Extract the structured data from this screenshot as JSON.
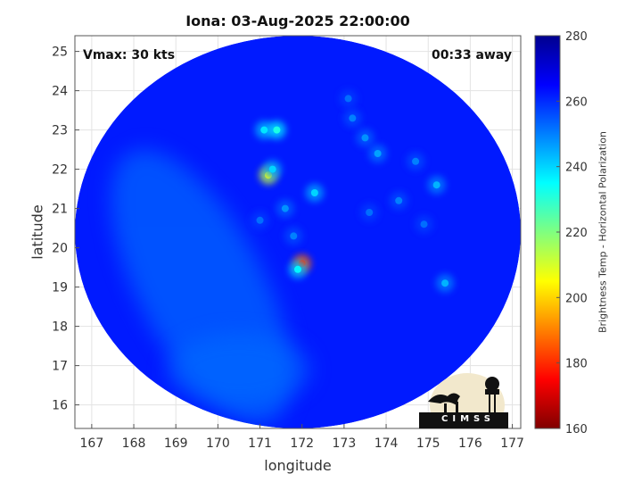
{
  "chart_data": {
    "type": "heatmap",
    "title": "Iona: 03-Aug-2025 22:00:00",
    "xlabel": "longitude",
    "ylabel": "latitude",
    "xlim": [
      166.6,
      177.2
    ],
    "ylim": [
      15.4,
      25.4
    ],
    "xticks": [
      167,
      168,
      169,
      170,
      171,
      172,
      173,
      174,
      175,
      176,
      177
    ],
    "yticks": [
      16,
      17,
      18,
      19,
      20,
      21,
      22,
      23,
      24,
      25
    ],
    "grid": true,
    "colorbar": {
      "label": "Brightness Temp - Horizontal Polarization",
      "range": [
        160,
        280
      ],
      "ticks": [
        160,
        180,
        200,
        220,
        240,
        260,
        280
      ],
      "colormap": "jet"
    },
    "annotations": {
      "vmax": "Vmax: 30 kts",
      "time_away": "00:33 away"
    },
    "swath": {
      "center_lon": 171.9,
      "center_lat": 20.4,
      "lon_radius": 5.3,
      "lat_radius": 5.0
    },
    "background_temp": 262,
    "features": [
      {
        "lon": 172.0,
        "lat": 19.6,
        "temp": 180
      },
      {
        "lon": 171.2,
        "lat": 21.85,
        "temp": 205
      },
      {
        "lon": 171.1,
        "lat": 23.0,
        "temp": 238
      },
      {
        "lon": 171.4,
        "lat": 23.0,
        "temp": 232
      },
      {
        "lon": 171.9,
        "lat": 19.45,
        "temp": 236
      },
      {
        "lon": 171.3,
        "lat": 22.0,
        "temp": 240
      },
      {
        "lon": 172.3,
        "lat": 21.4,
        "temp": 240
      },
      {
        "lon": 175.2,
        "lat": 21.6,
        "temp": 244
      },
      {
        "lon": 175.4,
        "lat": 19.1,
        "temp": 244
      },
      {
        "lon": 173.8,
        "lat": 22.4,
        "temp": 246
      },
      {
        "lon": 173.5,
        "lat": 22.8,
        "temp": 248
      },
      {
        "lon": 171.6,
        "lat": 21.0,
        "temp": 248
      },
      {
        "lon": 171.8,
        "lat": 20.3,
        "temp": 250
      },
      {
        "lon": 174.7,
        "lat": 22.2,
        "temp": 250
      },
      {
        "lon": 174.3,
        "lat": 21.2,
        "temp": 250
      },
      {
        "lon": 173.2,
        "lat": 23.3,
        "temp": 250
      },
      {
        "lon": 171.0,
        "lat": 20.7,
        "temp": 252
      },
      {
        "lon": 174.9,
        "lat": 20.6,
        "temp": 252
      },
      {
        "lon": 173.6,
        "lat": 20.9,
        "temp": 252
      },
      {
        "lon": 173.1,
        "lat": 23.8,
        "temp": 252
      }
    ]
  },
  "logo": {
    "name": "cimss-logo",
    "text": "CIMSS"
  }
}
